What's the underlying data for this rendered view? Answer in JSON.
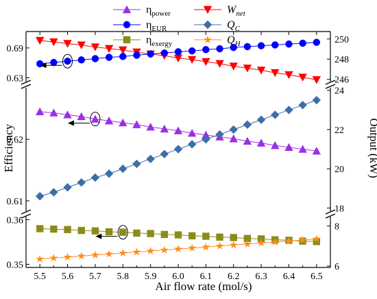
{
  "chart_data": {
    "type": "line",
    "xlabel": "Air flow rate (mol/s)",
    "ylabel_left": "Efficiency",
    "ylabel_right": "Output (kW)",
    "x": [
      5.5,
      5.55,
      5.6,
      5.65,
      5.7,
      5.75,
      5.8,
      5.85,
      5.9,
      5.95,
      6.0,
      6.05,
      6.1,
      6.15,
      6.2,
      6.25,
      6.3,
      6.35,
      6.4,
      6.45,
      6.5
    ],
    "x_ticks": [
      "5.5",
      "5.6",
      "5.7",
      "5.8",
      "5.9",
      "6.0",
      "6.1",
      "6.2",
      "6.3",
      "6.4",
      "6.5"
    ],
    "left_axis_segments": [
      {
        "ylim": [
          0.6815,
          0.6935
        ],
        "ticks": [
          "0.69"
        ]
      },
      {
        "ylim": [
          0.6082,
          0.6286
        ],
        "ticks": [
          "0.63",
          "0.62",
          "0.61"
        ]
      },
      {
        "ylim": [
          0.3496,
          0.3613
        ],
        "ticks": [
          "0.36",
          "0.35"
        ]
      }
    ],
    "right_axis_segments": [
      {
        "ylim": [
          245.5,
          250.6
        ],
        "ticks": [
          "250",
          "248",
          "246"
        ]
      },
      {
        "ylim": [
          17.8,
          24.2
        ],
        "ticks": [
          "24",
          "22",
          "20",
          "18"
        ]
      },
      {
        "ylim": [
          6.0,
          8.6
        ],
        "ticks": [
          "8",
          "6"
        ]
      }
    ],
    "series": [
      {
        "name": "η_power",
        "axis": "left",
        "segment": 1,
        "color": "#9b30e0",
        "marker": "triangle-up",
        "values": [
          0.6245,
          0.6243,
          0.624,
          0.6237,
          0.6233,
          0.623,
          0.6227,
          0.6224,
          0.622,
          0.6217,
          0.6214,
          0.621,
          0.6207,
          0.6204,
          0.6201,
          0.6197,
          0.6194,
          0.619,
          0.6187,
          0.6184,
          0.6181
        ]
      },
      {
        "name": "W_net",
        "axis": "right",
        "segment": 0,
        "color": "#ff0000",
        "marker": "triangle-down",
        "values": [
          249.85,
          249.7,
          249.55,
          249.4,
          249.2,
          249.05,
          248.9,
          248.7,
          248.5,
          248.35,
          248.1,
          247.95,
          247.75,
          247.55,
          247.3,
          247.1,
          246.9,
          246.65,
          246.45,
          246.2,
          245.95
        ]
      },
      {
        "name": "η_EUR",
        "axis": "left",
        "segment": 0,
        "color": "#0000ff",
        "marker": "circle",
        "values": [
          0.6863,
          0.6866,
          0.6869,
          0.6872,
          0.6875,
          0.6878,
          0.688,
          0.6883,
          0.6886,
          0.6888,
          0.6891,
          0.6893,
          0.6896,
          0.6898,
          0.6901,
          0.6903,
          0.6905,
          0.6907,
          0.6909,
          0.6911,
          0.6913
        ]
      },
      {
        "name": "Q_C",
        "axis": "right",
        "segment": 1,
        "color": "#3d6ea8",
        "marker": "diamond",
        "values": [
          18.6,
          18.8,
          19.05,
          19.3,
          19.55,
          19.75,
          20.0,
          20.25,
          20.5,
          20.75,
          21.0,
          21.25,
          21.5,
          21.75,
          22.0,
          22.25,
          22.5,
          22.75,
          23.0,
          23.25,
          23.5
        ]
      },
      {
        "name": "η_exergy",
        "axis": "left",
        "segment": 2,
        "color": "#8b8b1a",
        "marker": "square",
        "values": [
          0.358,
          0.3579,
          0.3578,
          0.3576,
          0.3575,
          0.3573,
          0.3572,
          0.357,
          0.3569,
          0.3567,
          0.3566,
          0.3564,
          0.3563,
          0.3561,
          0.356,
          0.3558,
          0.3557,
          0.3555,
          0.3554,
          0.3552,
          0.3551
        ]
      },
      {
        "name": "Q_H",
        "axis": "right",
        "segment": 2,
        "color": "#ff8c1a",
        "marker": "star",
        "values": [
          6.35,
          6.4,
          6.45,
          6.5,
          6.55,
          6.6,
          6.65,
          6.7,
          6.75,
          6.8,
          6.85,
          6.9,
          6.95,
          7.0,
          7.05,
          7.1,
          7.15,
          7.2,
          7.25,
          7.3,
          7.35
        ]
      }
    ],
    "legend": [
      {
        "symbol": "η",
        "sub": "power",
        "series": "η_power"
      },
      {
        "symbol": "W",
        "sub": "net",
        "series": "W_net"
      },
      {
        "symbol": "η",
        "sub": "EUR",
        "series": "η_EUR"
      },
      {
        "symbol": "Q",
        "sub": "C",
        "series": "Q_C"
      },
      {
        "symbol": "η",
        "sub": "exergy",
        "series": "η_exergy"
      },
      {
        "symbol": "Q",
        "sub": "H",
        "series": "Q_H"
      }
    ],
    "legend_placement": "top-left",
    "grid": false,
    "annotations": [
      {
        "type": "circle-arrow",
        "series": "η_EUR",
        "x": 5.6,
        "direction": "left"
      },
      {
        "type": "circle-arrow",
        "series": "η_power",
        "x": 5.7,
        "direction": "left"
      },
      {
        "type": "circle-arrow",
        "series": "η_exergy",
        "x": 5.8,
        "direction": "left"
      }
    ]
  }
}
